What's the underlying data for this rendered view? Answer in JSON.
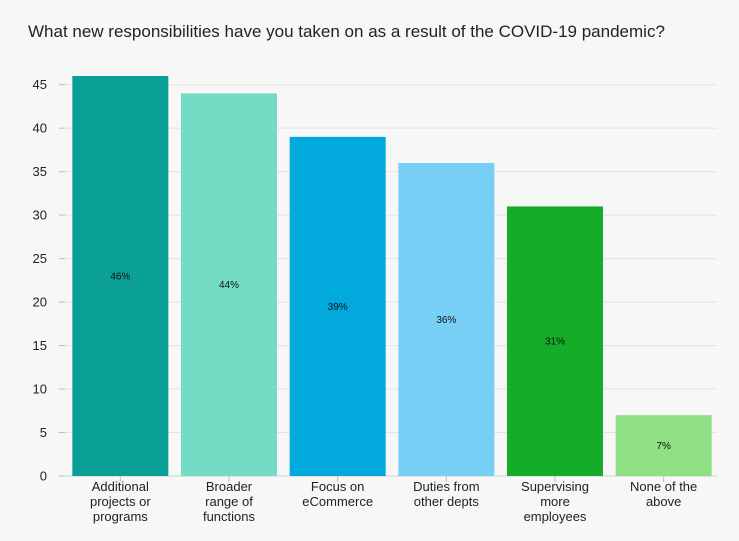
{
  "chart_data": {
    "type": "bar",
    "title": "What new responsibilities have you taken on as a result of the COVID-19 pandemic?",
    "categories": [
      [
        "Additional",
        "projects or",
        "programs"
      ],
      [
        "Broader",
        "range of",
        "functions"
      ],
      [
        "Focus on",
        "eCommerce"
      ],
      [
        "Duties from",
        "other depts"
      ],
      [
        "Supervising",
        "more",
        "employees"
      ],
      [
        "None of the",
        "above"
      ]
    ],
    "values": [
      46,
      44,
      39,
      36,
      31,
      7
    ],
    "data_labels": [
      "46%",
      "44%",
      "39%",
      "36%",
      "31%",
      "7%"
    ],
    "colors": [
      "#0aa098",
      "#72dcc4",
      "#02a9dc",
      "#78cff5",
      "#15ad28",
      "#8fdf84"
    ],
    "ylim": [
      0,
      46
    ],
    "yticks": [
      0,
      5,
      10,
      15,
      20,
      25,
      30,
      35,
      40,
      45
    ],
    "grid": true
  }
}
